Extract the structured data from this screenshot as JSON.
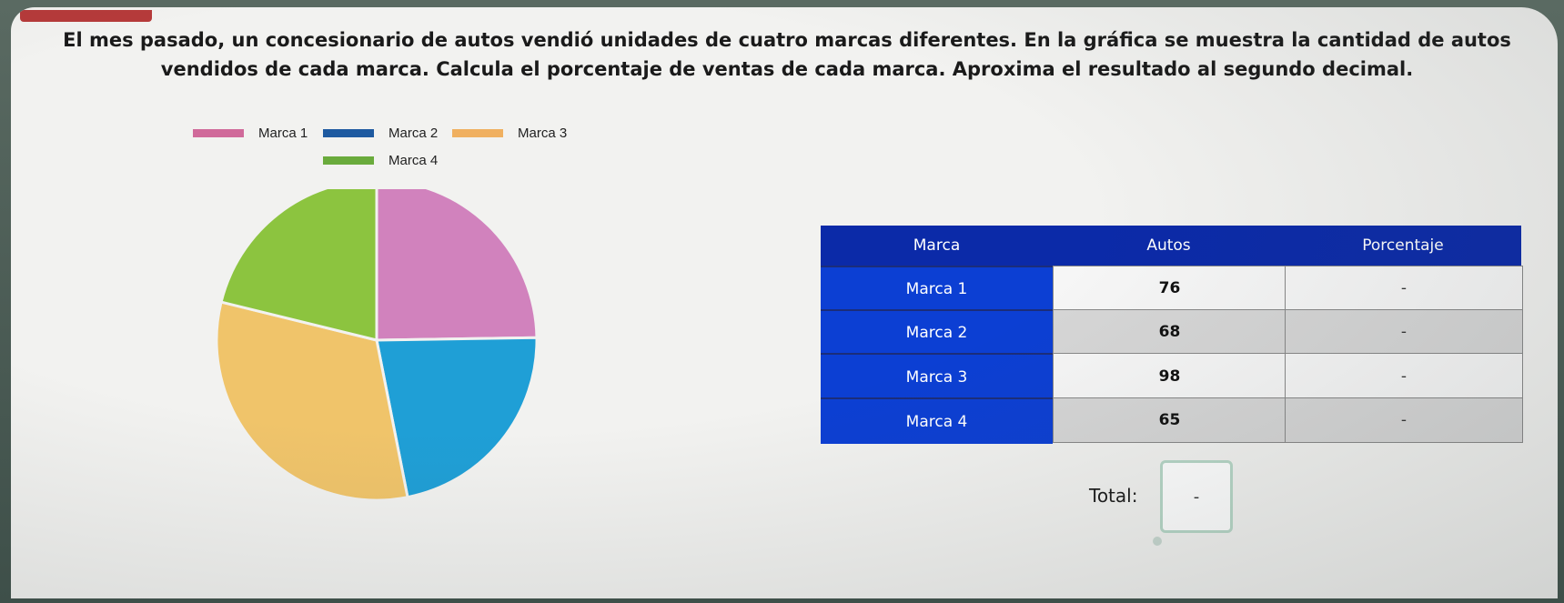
{
  "question": "El mes pasado, un concesionario de autos vendió unidades de cuatro marcas diferentes. En la gráfica se muestra la cantidad de autos vendidos de cada marca. Calcula el porcentaje de ventas de cada marca. Aproxima el resultado al segundo decimal.",
  "chart_data": {
    "type": "pie",
    "labels": [
      "Marca 1",
      "Marca 2",
      "Marca 3",
      "Marca 4"
    ],
    "values": [
      76,
      68,
      98,
      65
    ],
    "colors": [
      "#d182bd",
      "#1f9fd6",
      "#f0c46a",
      "#8cc43f"
    ],
    "legend_colors": [
      "#d06a9a",
      "#1e5aa0",
      "#f0b060",
      "#6aab3c"
    ],
    "legend": "top",
    "start": "12 o'clock",
    "direction": "clockwise"
  },
  "table": {
    "headers": [
      "Marca",
      "Autos",
      "Porcentaje"
    ],
    "rows": [
      {
        "brand": "Marca 1",
        "autos": "76",
        "pct": "-"
      },
      {
        "brand": "Marca 2",
        "autos": "68",
        "pct": "-"
      },
      {
        "brand": "Marca 3",
        "autos": "98",
        "pct": "-"
      },
      {
        "brand": "Marca 4",
        "autos": "65",
        "pct": "-"
      }
    ]
  },
  "total": {
    "label": "Total:",
    "value": "-"
  }
}
